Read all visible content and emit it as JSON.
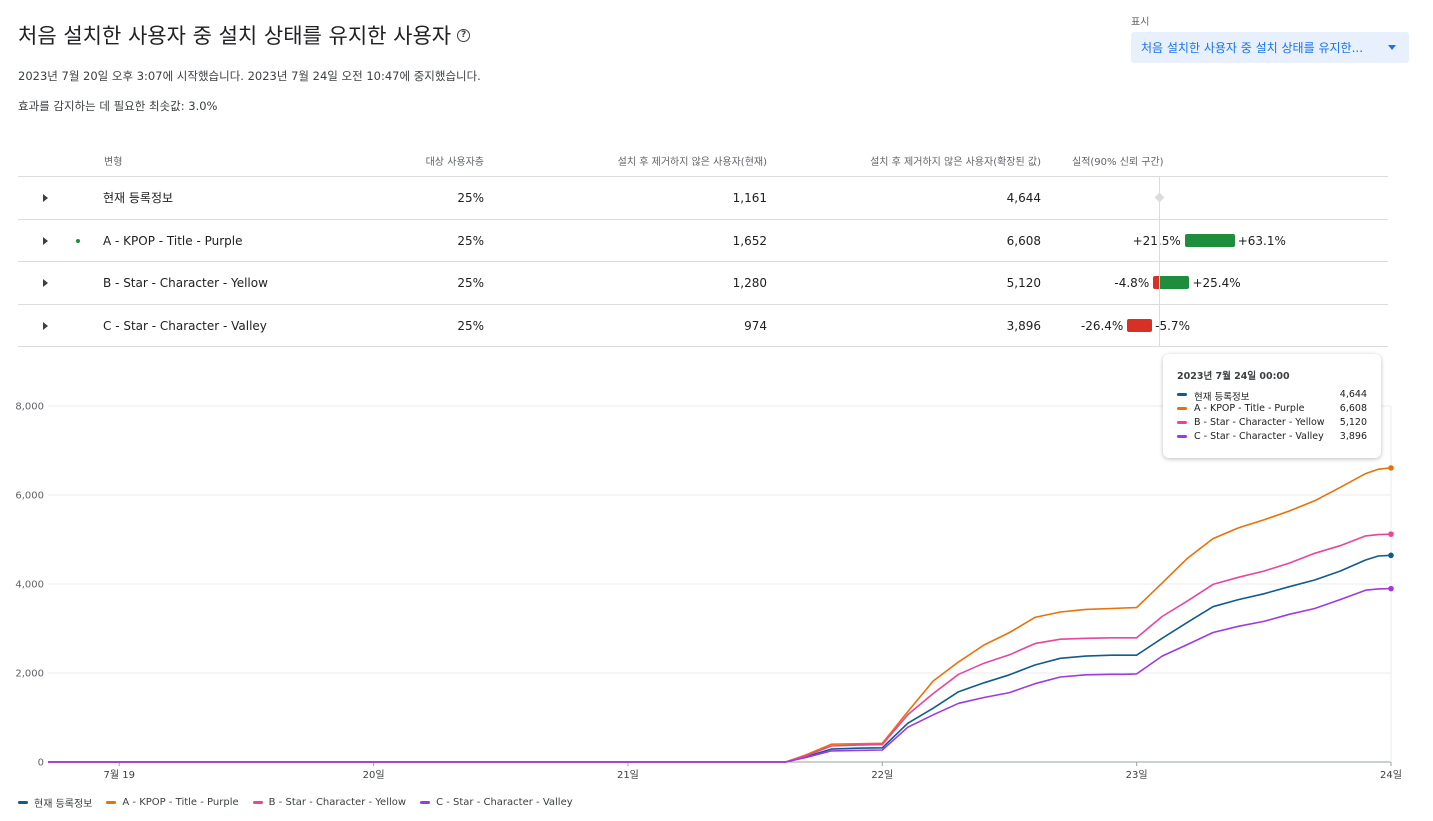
{
  "header": {
    "title": "처음 설치한 사용자 중 설치 상태를 유지한 사용자",
    "help_icon": "?",
    "dates": "2023년 7월 20일 오후 3:07에 시작했습니다. 2023년 7월 24일 오전 10:47에 중지했습니다.",
    "min_effect": "효과를 감지하는 데 필요한 최솟값: 3.0%"
  },
  "display": {
    "label": "표시",
    "value": "처음 설치한 사용자 중 설치 상태를 유지한..."
  },
  "table": {
    "headers": [
      "변형",
      "대상 사용자층",
      "설치 후 제거하지 않은 사용자(현재)",
      "설치 후 제거하지 않은 사용자(확장된 값)",
      "실적(90% 신뢰 구간)"
    ],
    "rows": [
      {
        "name": "현재 등록정보",
        "audience": "25%",
        "current": "1,161",
        "scaled": "4,644",
        "ci_low": "",
        "ci_high": "",
        "ci": null,
        "winner": false
      },
      {
        "name": "A - KPOP - Title - Purple",
        "audience": "25%",
        "current": "1,652",
        "scaled": "6,608",
        "ci_low": "+21.5%",
        "ci_high": "+63.1%",
        "ci": [
          21.5,
          63.1
        ],
        "winner": true
      },
      {
        "name": "B - Star - Character - Yellow",
        "audience": "25%",
        "current": "1,280",
        "scaled": "5,120",
        "ci_low": "-4.8%",
        "ci_high": "+25.4%",
        "ci": [
          -4.8,
          25.4
        ],
        "winner": false
      },
      {
        "name": "C - Star - Character - Valley",
        "audience": "25%",
        "current": "974",
        "scaled": "3,896",
        "ci_low": "-26.4%",
        "ci_high": "-5.7%",
        "ci": [
          -26.4,
          -5.7
        ],
        "winner": false
      }
    ],
    "colors": {
      "positive": "#1e8e3e",
      "negative": "#d93025",
      "neutral": "#dadce0"
    }
  },
  "tooltip": {
    "date": "2023년 7월 24일 00:00",
    "rows": [
      {
        "name": "현재 등록정보",
        "value": "4,644"
      },
      {
        "name": "A - KPOP - Title - Purple",
        "value": "6,608"
      },
      {
        "name": "B - Star - Character - Yellow",
        "value": "5,120"
      },
      {
        "name": "C - Star - Character - Valley",
        "value": "3,896"
      }
    ]
  },
  "chart_data": {
    "type": "line",
    "x_ticks": [
      {
        "label": "7월 19",
        "x": 19
      },
      {
        "label": "20일",
        "x": 20
      },
      {
        "label": "21일",
        "x": 21
      },
      {
        "label": "22일",
        "x": 22
      },
      {
        "label": "23일",
        "x": 23
      },
      {
        "label": "24일",
        "x": 24
      }
    ],
    "y_ticks": [
      "0",
      "2,000",
      "4,000",
      "6,000",
      "8,000"
    ],
    "ylim": [
      0,
      8000
    ],
    "xlim": [
      18.72,
      24
    ],
    "grid": true,
    "legend_position": "bottom-left",
    "x": [
      18.72,
      21.62,
      21.7,
      21.8,
      21.9,
      22.0,
      22.1,
      22.2,
      22.3,
      22.4,
      22.5,
      22.6,
      22.7,
      22.8,
      22.9,
      22.95,
      23.0,
      23.1,
      23.2,
      23.3,
      23.4,
      23.5,
      23.6,
      23.7,
      23.8,
      23.9,
      23.95,
      24.0
    ],
    "series": [
      {
        "name": "현재 등록정보",
        "color": "#125b8a",
        "values": [
          0,
          0,
          120,
          290,
          310,
          320,
          870,
          1210,
          1580,
          1780,
          1960,
          2180,
          2330,
          2380,
          2400,
          2400,
          2400,
          2780,
          3140,
          3490,
          3650,
          3780,
          3940,
          4090,
          4290,
          4540,
          4630,
          4644
        ]
      },
      {
        "name": "A - KPOP - Title - Purple",
        "color": "#e8710a",
        "values": [
          0,
          0,
          160,
          400,
          410,
          420,
          1130,
          1820,
          2250,
          2630,
          2910,
          3250,
          3370,
          3430,
          3450,
          3460,
          3470,
          4020,
          4580,
          5020,
          5260,
          5440,
          5640,
          5870,
          6170,
          6480,
          6580,
          6608
        ]
      },
      {
        "name": "B - Star - Character - Yellow",
        "color": "#e8459d",
        "values": [
          0,
          0,
          140,
          360,
          380,
          390,
          1060,
          1540,
          1970,
          2220,
          2410,
          2660,
          2760,
          2780,
          2790,
          2790,
          2790,
          3270,
          3620,
          3990,
          4150,
          4290,
          4470,
          4690,
          4860,
          5080,
          5110,
          5120
        ]
      },
      {
        "name": "C - Star - Character - Valley",
        "color": "#9c3be0",
        "values": [
          0,
          0,
          100,
          250,
          260,
          270,
          780,
          1060,
          1320,
          1450,
          1560,
          1760,
          1910,
          1960,
          1970,
          1970,
          1980,
          2380,
          2640,
          2910,
          3050,
          3160,
          3320,
          3450,
          3650,
          3860,
          3890,
          3896
        ]
      }
    ]
  }
}
